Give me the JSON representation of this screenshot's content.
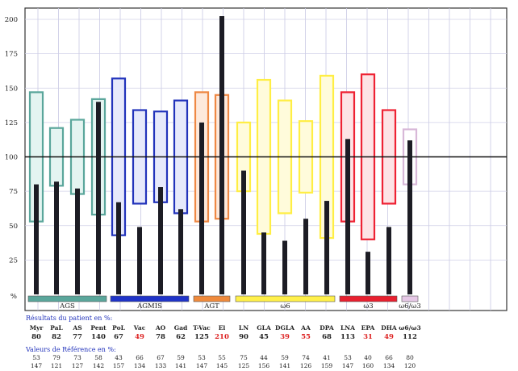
{
  "chart_data": {
    "type": "bar",
    "title": "",
    "xlabel": "",
    "ylabel": "%",
    "ylim": [
      0,
      200
    ],
    "yticks": [
      25,
      50,
      75,
      100,
      125,
      150,
      175,
      200
    ],
    "y_unit_label": "%",
    "reference_line": 100,
    "grid": true,
    "categories": [
      "Myr",
      "PaL",
      "AS",
      "Pent",
      "PoL",
      "Vac",
      "AO",
      "Gad",
      "T-Vac",
      "El",
      "LN",
      "GLA",
      "DGLA",
      "AA",
      "DPA",
      "LNA",
      "EPA",
      "DHA",
      "ω6/ω3"
    ],
    "series": [
      {
        "name": "",
        "values": [
          80,
          82,
          77,
          140,
          67,
          49,
          78,
          62,
          125,
          210,
          90,
          45,
          39,
          55,
          68,
          113,
          31,
          49,
          112
        ]
      }
    ],
    "reference_ranges": [
      [
        53,
        147
      ],
      [
        79,
        121
      ],
      [
        73,
        127
      ],
      [
        58,
        142
      ],
      [
        43,
        157
      ],
      [
        66,
        134
      ],
      [
        67,
        133
      ],
      [
        59,
        141
      ],
      [
        53,
        147
      ],
      [
        55,
        145
      ],
      [
        75,
        125
      ],
      [
        44,
        156
      ],
      [
        59,
        141
      ],
      [
        74,
        126
      ],
      [
        41,
        159
      ],
      [
        53,
        147
      ],
      [
        40,
        160
      ],
      [
        66,
        134
      ],
      [
        80,
        120
      ]
    ],
    "group_colors": [
      "#5aa69b",
      "#5aa69b",
      "#5aa69b",
      "#5aa69b",
      "#2233bb",
      "#2233bb",
      "#2233bb",
      "#2233bb",
      "#ee8844",
      "#ee8844",
      "#ffee44",
      "#ffee44",
      "#ffee44",
      "#ffee44",
      "#ffee44",
      "#ee2233",
      "#ee2233",
      "#ee2233",
      "#d8b8d8"
    ],
    "group_fills": [
      "#e4f4f1",
      "#e4f4f1",
      "#e4f4f1",
      "#e4f4f1",
      "#e6e9fb",
      "#e6e9fb",
      "#e6e9fb",
      "#e6e9fb",
      "#fde9dc",
      "#fde9dc",
      "#fffbdb",
      "#fffbdb",
      "#fffbdb",
      "#fffbdb",
      "#fffbdb",
      "#fde3e5",
      "#fde3e5",
      "#fde3e5",
      "#ffffff"
    ],
    "groups": [
      {
        "label": "AGS",
        "start": 0,
        "end": 3,
        "color": "#5aa69b"
      },
      {
        "label": "AGMIS",
        "start": 4,
        "end": 7,
        "color": "#1f33c8"
      },
      {
        "label": "AGT",
        "start": 8,
        "end": 9,
        "color": "#ef8a3c"
      },
      {
        "label": "ω6",
        "start": 10,
        "end": 14,
        "color": "#fff04a"
      },
      {
        "label": "ω3",
        "start": 15,
        "end": 17,
        "color": "#e8202f"
      },
      {
        "label": "ω6/ω3",
        "start": 18,
        "end": 18,
        "color": "#e6c8e6"
      }
    ]
  },
  "results_label": "Résultats du patient en %:",
  "reference_label": "Valeurs de Référence en %:",
  "out_of_range_color": "#dd2222",
  "out_of_range_index": [
    5,
    9,
    12,
    13,
    16,
    17
  ],
  "ref_low_display": [
    "53",
    "79",
    "73",
    "58",
    "43",
    "66",
    "67",
    "59",
    "53",
    "55",
    "75",
    "44",
    "59",
    "74",
    "41",
    "53",
    "40",
    "66",
    "80"
  ],
  "ref_high_display": [
    "147",
    "121",
    "127",
    "142",
    "157",
    "134",
    "133",
    "141",
    "147",
    "145",
    "125",
    "156",
    "141",
    "126",
    "159",
    "147",
    "160",
    "134",
    "120"
  ]
}
